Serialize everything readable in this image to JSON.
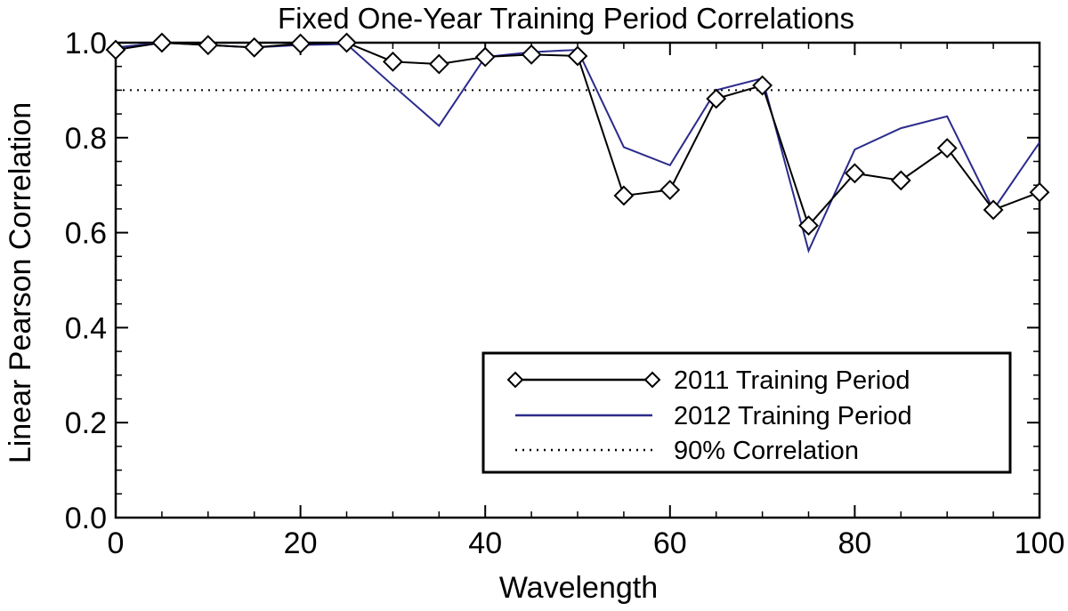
{
  "chart_data": {
    "type": "line",
    "title": "Fixed One-Year Training Period Correlations",
    "xlabel": "Wavelength",
    "ylabel": "Linear Pearson Correlation",
    "xlim": [
      0,
      100
    ],
    "ylim": [
      0,
      1.0
    ],
    "xticks": [
      0,
      20,
      40,
      60,
      80,
      100
    ],
    "yticks": [
      0.0,
      0.2,
      0.4,
      0.6,
      0.8,
      1.0
    ],
    "xtick_labels": [
      "0",
      "20",
      "40",
      "60",
      "80",
      "100"
    ],
    "ytick_labels": [
      "0.0",
      "0.2",
      "0.4",
      "0.6",
      "0.8",
      "1.0"
    ],
    "grid": false,
    "legend_position": "bottom-right",
    "x": [
      0,
      5,
      10,
      15,
      20,
      25,
      30,
      35,
      40,
      45,
      50,
      55,
      60,
      65,
      70,
      75,
      80,
      85,
      90,
      95,
      100
    ],
    "series": [
      {
        "name": "2011 Training Period",
        "color": "#000000",
        "marker": "diamond",
        "style": "solid",
        "values": [
          0.985,
          1.0,
          0.995,
          0.99,
          0.998,
          1.0,
          0.96,
          0.955,
          0.97,
          0.975,
          0.972,
          0.678,
          0.69,
          0.882,
          0.91,
          0.615,
          0.725,
          0.71,
          0.778,
          0.648,
          0.685
        ]
      },
      {
        "name": "2012 Training Period",
        "color": "#2b2b8c",
        "marker": "none",
        "style": "solid",
        "values": [
          0.99,
          1.0,
          0.995,
          0.99,
          0.995,
          0.997,
          0.91,
          0.825,
          0.97,
          0.98,
          0.985,
          0.78,
          0.742,
          0.9,
          0.925,
          0.562,
          0.775,
          0.82,
          0.845,
          0.648,
          0.79
        ]
      },
      {
        "name": "90% Correlation",
        "color": "#000000",
        "marker": "none",
        "style": "dotted",
        "constant": 0.9
      }
    ]
  }
}
